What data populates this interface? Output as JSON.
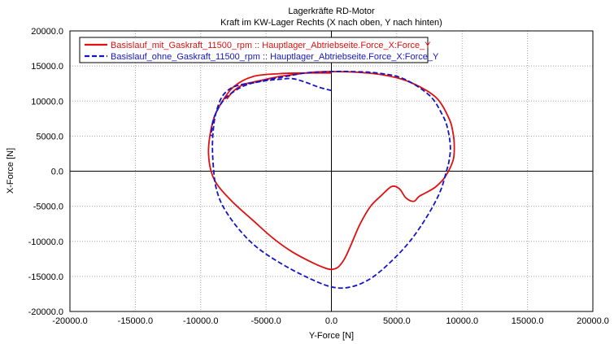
{
  "chart_data": {
    "type": "line",
    "title": "Lagerkräfte RD-Motor",
    "subtitle": "Kraft im KW-Lager Rechts (X nach oben, Y nach hinten)",
    "xlabel": "Y-Force [N]",
    "ylabel": "X-Force [N]",
    "xlim": [
      -20000,
      20000
    ],
    "ylim": [
      -20000,
      20000
    ],
    "xticks": [
      "-20000.0",
      "-15000.0",
      "-10000.0",
      "-5000.0",
      "0.0",
      "5000.0",
      "10000.0",
      "15000.0",
      "20000.0"
    ],
    "yticks": [
      "20000.0",
      "15000.0",
      "10000.0",
      "5000.0",
      "0.0",
      "-5000.0",
      "-10000.0",
      "-15000.0",
      "-20000.0"
    ],
    "grid": true,
    "legend": "top-left",
    "series": [
      {
        "name": "Basislauf_mit_Gaskraft_11500_rpm :: Hauptlager_Abtriebseite.Force_X:Force_Y",
        "color": "#e01010",
        "style": "solid",
        "x": [
          0,
          -2000,
          -4000,
          -6000,
          -7500,
          -8500,
          -9000,
          -9300,
          -9400,
          -9200,
          -8700,
          -7500,
          -6000,
          -4500,
          -3000,
          -1500,
          -500,
          0,
          500,
          1000,
          1500,
          2200,
          3000,
          3800,
          4600,
          5200,
          5700,
          6300,
          6700,
          7300,
          8000,
          8700,
          9300,
          9400,
          9300,
          9000,
          8000,
          6000,
          4000,
          2000,
          0,
          -1500,
          -2800,
          -4000,
          -5000,
          -6000,
          -6800,
          -7500,
          -8000
        ],
        "y": [
          14000,
          14000,
          13900,
          13500,
          12000,
          9500,
          7500,
          5000,
          2500,
          0,
          -2000,
          -4500,
          -7000,
          -9500,
          -11500,
          -13000,
          -13800,
          -14000,
          -13700,
          -12500,
          -10500,
          -7500,
          -5000,
          -3500,
          -2200,
          -2500,
          -3800,
          -4300,
          -3600,
          -3000,
          -2200,
          -800,
          1500,
          3500,
          5500,
          7500,
          10500,
          12700,
          13700,
          14100,
          14200,
          14100,
          13800,
          13500,
          13100,
          12700,
          12300,
          11400,
          10300
        ]
      },
      {
        "name": "Basislauf_ohne_Gaskraft_11500_rpm :: Hauptlager_Abtriebseite.Force_X:Force_Y",
        "color": "#1414c8",
        "style": "dashed",
        "x": [
          0,
          -1000,
          -2000,
          -3000,
          -4000,
          -5000,
          -6000,
          -7000,
          -7800,
          -8400,
          -8800,
          -9000,
          -9100,
          -9000,
          -8800,
          -8300,
          -7200,
          -5800,
          -4000,
          -2000,
          0,
          1500,
          3000,
          4500,
          6000,
          7300,
          8300,
          8800,
          9000,
          9100,
          8900,
          8500,
          7500,
          5500,
          3500,
          1500,
          0,
          -2000,
          -3500,
          -5000,
          -6500,
          -7500,
          -8300,
          -9000,
          -9200
        ],
        "y": [
          11500,
          12000,
          12700,
          13200,
          13100,
          12900,
          12600,
          12300,
          11700,
          10500,
          8500,
          6500,
          3500,
          0,
          -2500,
          -5000,
          -8000,
          -10700,
          -13000,
          -15000,
          -16500,
          -16500,
          -15300,
          -13000,
          -10000,
          -6500,
          -3000,
          0,
          1500,
          3500,
          6000,
          8000,
          10800,
          13200,
          14000,
          14200,
          14200,
          14000,
          13500,
          13000,
          12300,
          11300,
          10000,
          7500,
          5000
        ]
      }
    ]
  }
}
